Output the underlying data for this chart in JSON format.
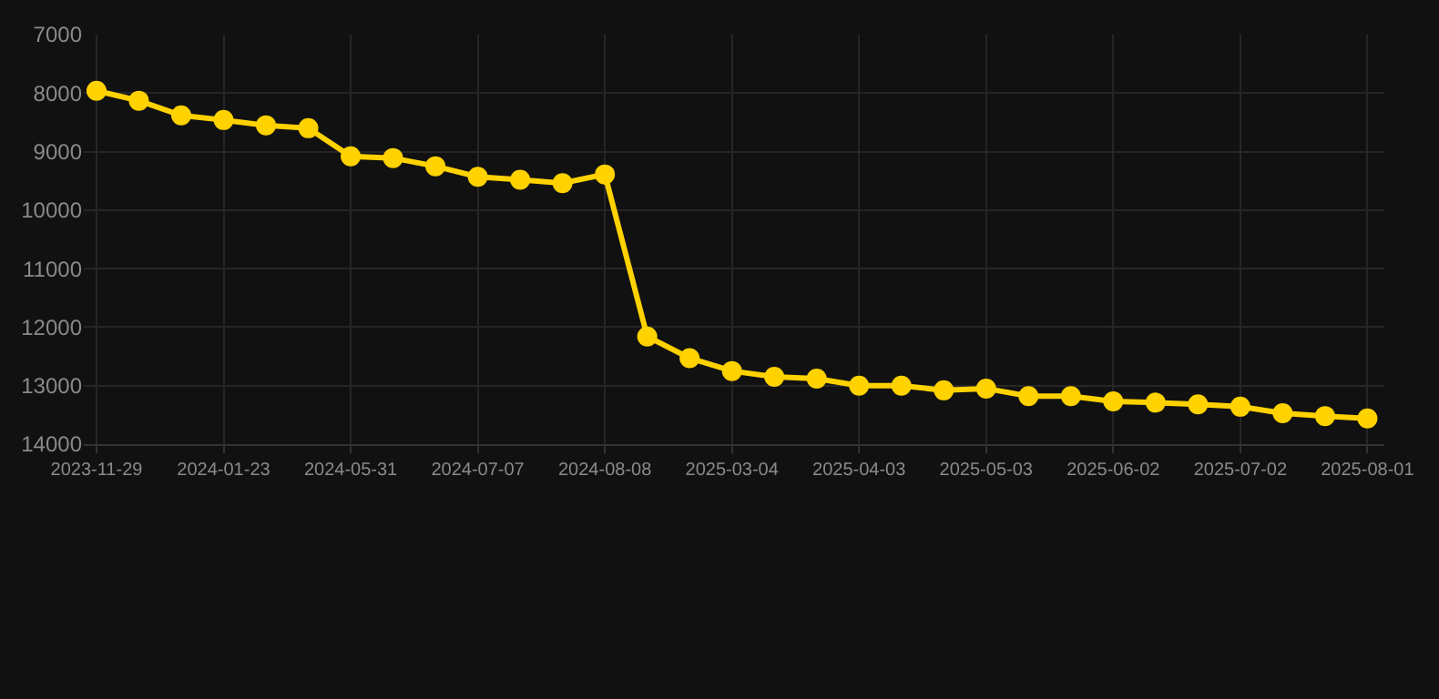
{
  "chart_data": {
    "type": "line",
    "categories": [
      "2023-11-29",
      null,
      null,
      "2024-01-23",
      null,
      null,
      "2024-05-31",
      null,
      null,
      "2024-07-07",
      null,
      null,
      "2024-08-08",
      null,
      null,
      "2025-03-04",
      null,
      null,
      "2025-04-03",
      null,
      null,
      "2025-05-03",
      null,
      null,
      "2025-06-02",
      null,
      null,
      "2025-07-02",
      null,
      null,
      "2025-08-01"
    ],
    "series": [
      {
        "color": "#ffd200",
        "values": [
          7960,
          8130,
          8380,
          8460,
          8550,
          8600,
          9080,
          9110,
          9250,
          9430,
          9480,
          9540,
          9390,
          12160,
          12530,
          12750,
          12850,
          12880,
          13000,
          13000,
          13080,
          13050,
          13180,
          13180,
          13270,
          13290,
          13320,
          13360,
          13470,
          13520,
          13560
        ]
      }
    ],
    "ylim": [
      14000,
      7000
    ],
    "yticks": [
      7000,
      8000,
      9000,
      10000,
      11000,
      12000,
      13000,
      14000
    ],
    "grid": true,
    "marker": "circle",
    "line_style": "solid"
  }
}
